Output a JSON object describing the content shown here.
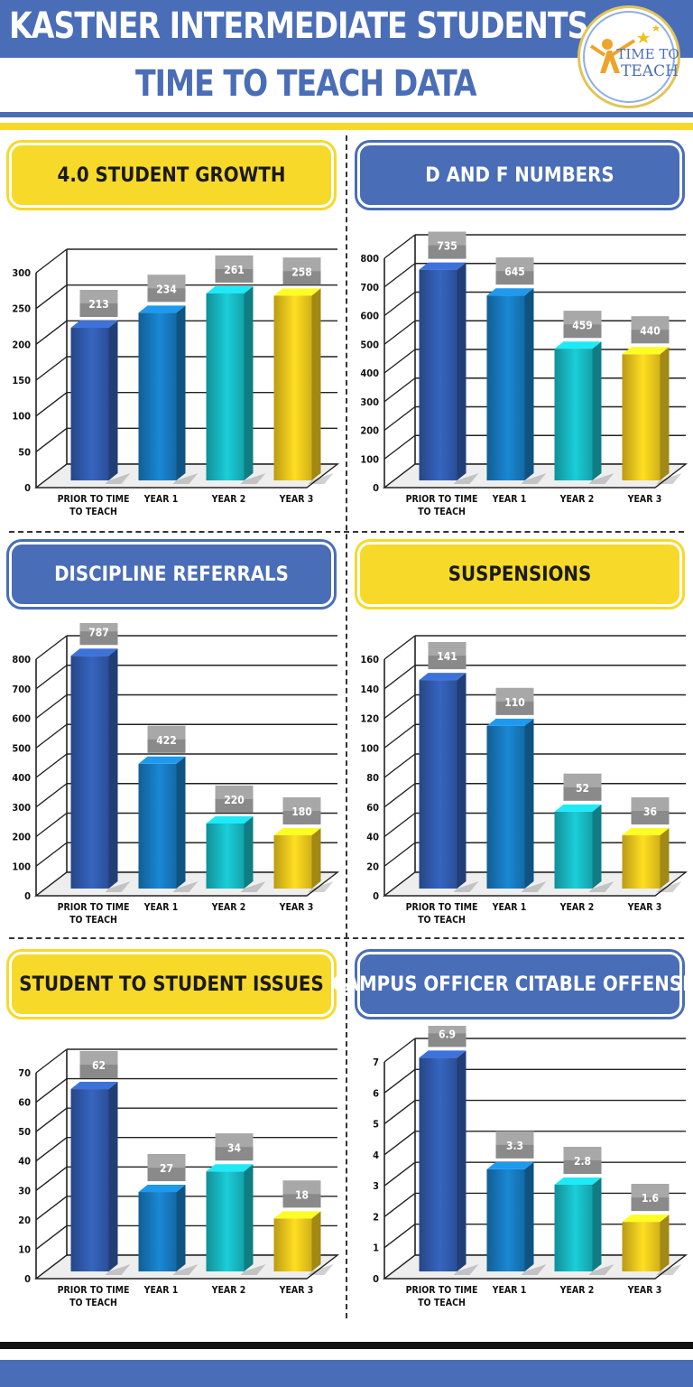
{
  "header": {
    "title": "KASTNER INTERMEDIATE STUDENTS",
    "subtitle": "TIME TO TEACH DATA",
    "logo_line1": "TIME TO",
    "logo_line2": "TEACH"
  },
  "colors": {
    "brand_blue": "#4a6db8",
    "brand_yellow": "#f7d92a",
    "bar_colors": [
      "#2f58a8",
      "#1676b8",
      "#17b3bd",
      "#e8c21c"
    ]
  },
  "chart_data": [
    {
      "type": "bar",
      "title": "4.0 STUDENT GROWTH",
      "title_style": "yellow",
      "categories": [
        "PRIOR TO TIME TO TEACH",
        "YEAR 1",
        "YEAR 2",
        "YEAR 3"
      ],
      "category_lines": [
        [
          "PRIOR TO TIME",
          "TO TEACH"
        ],
        [
          "YEAR 1"
        ],
        [
          "YEAR 2"
        ],
        [
          "YEAR 3"
        ]
      ],
      "values": [
        213,
        234,
        261,
        258
      ],
      "value_labels": [
        "213",
        "234",
        "261",
        "258"
      ],
      "yticks": [
        0,
        50,
        100,
        150,
        200,
        250,
        300
      ],
      "ylim": [
        0,
        300
      ]
    },
    {
      "type": "bar",
      "title": "D AND F NUMBERS",
      "title_style": "blue",
      "categories": [
        "PRIOR TO TIME TO TEACH",
        "YEAR 1",
        "YEAR 2",
        "YEAR 3"
      ],
      "category_lines": [
        [
          "PRIOR TO TIME",
          "TO TEACH"
        ],
        [
          "YEAR 1"
        ],
        [
          "YEAR 2"
        ],
        [
          "YEAR 3"
        ]
      ],
      "values": [
        735,
        645,
        459,
        440
      ],
      "value_labels": [
        "735",
        "645",
        "459",
        "440"
      ],
      "yticks": [
        0,
        100,
        200,
        300,
        400,
        500,
        600,
        700,
        800
      ],
      "ylim": [
        0,
        800
      ]
    },
    {
      "type": "bar",
      "title": "DISCIPLINE REFERRALS",
      "title_style": "blue",
      "categories": [
        "PRIOR TO TIME TO TEACH",
        "YEAR 1",
        "YEAR 2",
        "YEAR 3"
      ],
      "category_lines": [
        [
          "PRIOR TO TIME",
          "TO TEACH"
        ],
        [
          "YEAR 1"
        ],
        [
          "YEAR 2"
        ],
        [
          "YEAR 3"
        ]
      ],
      "values": [
        787,
        422,
        220,
        180
      ],
      "value_labels": [
        "787",
        "422",
        "220",
        "180"
      ],
      "yticks": [
        0,
        100,
        200,
        300,
        400,
        500,
        600,
        700,
        800
      ],
      "ylim": [
        0,
        800
      ]
    },
    {
      "type": "bar",
      "title": "SUSPENSIONS",
      "title_style": "yellow",
      "categories": [
        "PRIOR TO TIME TO TEACH",
        "YEAR 1",
        "YEAR 2",
        "YEAR 3"
      ],
      "category_lines": [
        [
          "PRIOR TO TIME",
          "TO TEACH"
        ],
        [
          "YEAR 1"
        ],
        [
          "YEAR 2"
        ],
        [
          "YEAR 3"
        ]
      ],
      "values": [
        141,
        110,
        52,
        36
      ],
      "value_labels": [
        "141",
        "110",
        "52",
        "36"
      ],
      "yticks": [
        0,
        20,
        40,
        60,
        80,
        100,
        120,
        140,
        160
      ],
      "ylim": [
        0,
        160
      ]
    },
    {
      "type": "bar",
      "title": "STUDENT TO STUDENT ISSUES",
      "title_style": "yellow",
      "categories": [
        "PRIOR TO TIME TO TEACH",
        "YEAR 1",
        "YEAR 2",
        "YEAR 3"
      ],
      "category_lines": [
        [
          "PRIOR TO TIME",
          "TO TEACH"
        ],
        [
          "YEAR 1"
        ],
        [
          "YEAR 2"
        ],
        [
          "YEAR 3"
        ]
      ],
      "values": [
        62,
        27,
        34,
        18
      ],
      "value_labels": [
        "62",
        "27",
        "34",
        "18"
      ],
      "yticks": [
        0,
        10,
        20,
        30,
        40,
        50,
        60,
        70
      ],
      "ylim": [
        0,
        70
      ]
    },
    {
      "type": "bar",
      "title": "CAMPUS OFFICER CITABLE OFFENSES",
      "title_style": "blue",
      "categories": [
        "PRIOR TO TIME TO TEACH",
        "YEAR 1",
        "YEAR 2",
        "YEAR 3"
      ],
      "category_lines": [
        [
          "PRIOR TO TIME",
          "TO TEACH"
        ],
        [
          "YEAR 1"
        ],
        [
          "YEAR 2"
        ],
        [
          "YEAR 3"
        ]
      ],
      "values": [
        6.9,
        3.3,
        2.8,
        1.6
      ],
      "value_labels": [
        "6.9",
        "3.3",
        "2.8",
        "1.6"
      ],
      "yticks": [
        0,
        1,
        2,
        3,
        4,
        5,
        6,
        7
      ],
      "ylim": [
        0,
        7
      ]
    }
  ]
}
